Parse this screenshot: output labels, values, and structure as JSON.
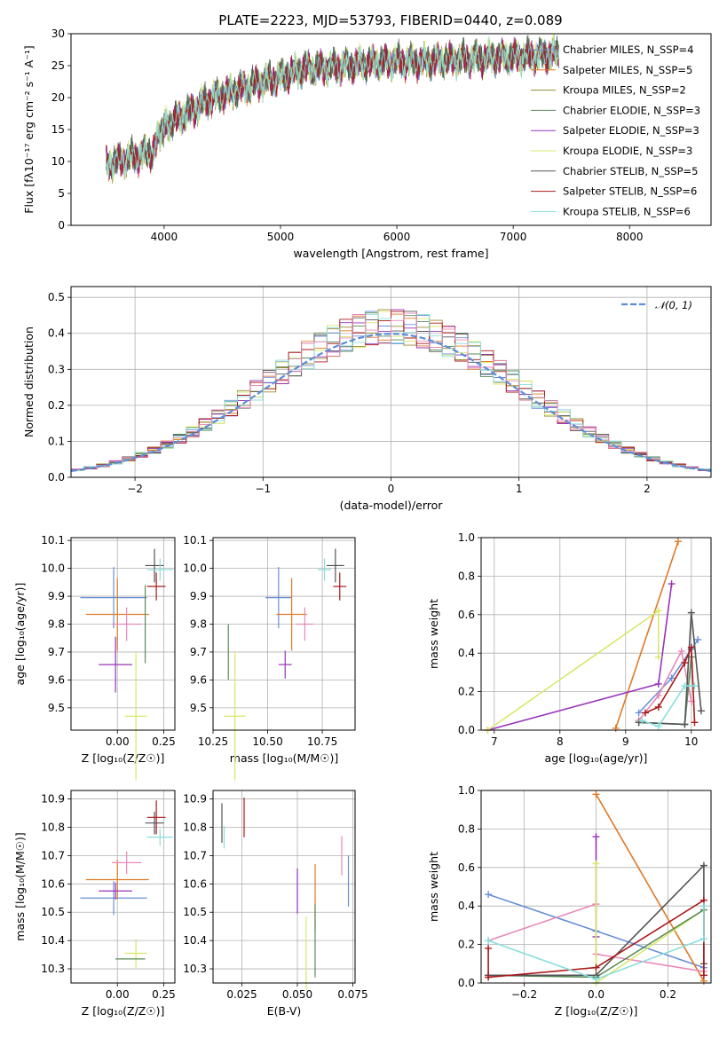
{
  "chart_data": [
    {
      "type": "line",
      "panel": "spectrum",
      "title": "PLATE=2223, MJD=53793, FIBERID=0440, z=0.089",
      "xlabel": "wavelength [Angstrom, rest frame]",
      "ylabel": "Flux [fλ10⁻¹⁷ erg cm⁻² s⁻¹ A⁻¹]",
      "xlim": [
        3200,
        8700
      ],
      "ylim": [
        0,
        30
      ],
      "xticks": [
        "4000",
        "5000",
        "6000",
        "7000",
        "8000"
      ],
      "yticks": [
        "0",
        "5",
        "10",
        "15",
        "20",
        "25",
        "30"
      ],
      "x": [
        3500,
        3700,
        3900,
        4000,
        4200,
        4400,
        4600,
        4800,
        5000,
        5200,
        5400,
        5600,
        5800,
        6000,
        6200,
        6400,
        6600,
        6800,
        7000,
        7200,
        7400
      ],
      "series": [
        {
          "name": "Chabrier MILES, N_SSP=4",
          "color": "#6a8fd8",
          "values": [
            9.5,
            10.5,
            11.5,
            15.5,
            17.5,
            19.8,
            21.0,
            22.2,
            23.2,
            24.5,
            24.6,
            25.0,
            25.4,
            25.6,
            25.5,
            25.8,
            26.0,
            26.2,
            26.3,
            26.5,
            26.8
          ]
        },
        {
          "name": "Salpeter MILES, N_SSP=5",
          "color": "#e07a28",
          "values": [
            9.3,
            10.3,
            11.2,
            15.3,
            17.3,
            19.6,
            20.8,
            22.0,
            23.0,
            24.3,
            24.5,
            24.9,
            25.3,
            25.5,
            25.4,
            25.7,
            25.9,
            26.1,
            26.2,
            26.4,
            26.7
          ]
        },
        {
          "name": "Kroupa MILES, N_SSP=2",
          "color": "#9a8a30",
          "values": [
            9.4,
            10.4,
            11.4,
            15.4,
            17.4,
            19.7,
            20.9,
            22.1,
            23.1,
            24.4,
            24.5,
            25.0,
            25.3,
            25.6,
            25.5,
            25.8,
            26.0,
            26.2,
            26.3,
            26.5,
            26.8
          ]
        },
        {
          "name": "Chabrier ELODIE, N_SSP=3",
          "color": "#5a8a5a",
          "values": [
            9.6,
            10.6,
            11.6,
            15.6,
            17.6,
            19.9,
            21.1,
            22.3,
            23.3,
            24.6,
            24.7,
            25.1,
            25.5,
            25.7,
            25.6,
            25.9,
            26.1,
            26.3,
            26.4,
            26.6,
            26.9
          ]
        },
        {
          "name": "Salpeter ELODIE, N_SSP=3",
          "color": "#9933bb",
          "values": [
            9.5,
            10.5,
            11.5,
            15.5,
            17.5,
            19.8,
            21.0,
            22.2,
            23.2,
            24.5,
            24.6,
            25.0,
            25.4,
            25.6,
            25.5,
            25.8,
            26.0,
            26.2,
            26.3,
            26.5,
            26.8
          ]
        },
        {
          "name": "Kroupa ELODIE, N_SSP=3",
          "color": "#d8e868",
          "values": [
            9.7,
            10.7,
            11.7,
            15.7,
            17.7,
            20.0,
            21.2,
            22.4,
            23.4,
            24.7,
            24.8,
            25.2,
            25.6,
            25.8,
            25.7,
            26.0,
            26.2,
            26.4,
            26.5,
            26.7,
            27.0
          ]
        },
        {
          "name": "Chabrier STELIB, N_SSP=5",
          "color": "#555555",
          "values": [
            9.8,
            10.8,
            11.8,
            15.8,
            17.8,
            20.1,
            21.3,
            22.5,
            23.5,
            24.8,
            24.9,
            25.3,
            25.7,
            25.9,
            25.8,
            26.1,
            26.3,
            26.5,
            26.6,
            26.8,
            27.1
          ]
        },
        {
          "name": "Salpeter STELIB, N_SSP=6",
          "color": "#aa1a1a",
          "values": [
            9.4,
            10.4,
            11.4,
            15.4,
            17.4,
            19.7,
            20.9,
            22.1,
            23.1,
            24.4,
            24.5,
            24.9,
            25.3,
            25.5,
            25.4,
            25.7,
            25.9,
            26.1,
            26.2,
            26.4,
            26.7
          ]
        },
        {
          "name": "Kroupa STELIB, N_SSP=6",
          "color": "#88dddd",
          "values": [
            9.5,
            10.5,
            11.5,
            15.5,
            17.5,
            19.8,
            21.0,
            22.2,
            23.2,
            24.5,
            24.6,
            25.0,
            25.4,
            25.6,
            25.5,
            25.8,
            26.0,
            26.2,
            26.3,
            26.5,
            26.8
          ]
        }
      ],
      "legend": "top-right"
    },
    {
      "type": "line",
      "panel": "residuals",
      "xlabel": "(data-model)/error",
      "ylabel": "Normed distribution",
      "xlim": [
        -2.5,
        2.5
      ],
      "ylim": [
        0,
        0.53
      ],
      "xticks": [
        "−2",
        "−1",
        "0",
        "1",
        "2"
      ],
      "yticks": [
        "0.0",
        "0.1",
        "0.2",
        "0.3",
        "0.4",
        "0.5"
      ],
      "grid": true,
      "reference": {
        "name": "𝒩(0, 1)",
        "color": "#5b8fd8"
      },
      "bin_width": 0.1,
      "bin_start": -2.5,
      "series_colors": [
        "#6a8fd8",
        "#e07a28",
        "#9a8a30",
        "#5a8a5a",
        "#9933bb",
        "#d8e868",
        "#555555",
        "#aa1a1a",
        "#88dddd",
        "#e888b8"
      ],
      "legend": "top-right"
    },
    {
      "type": "scatter",
      "panel": "age-Z",
      "xlabel": "Z [log₁₀(Z/Z☉)]",
      "ylabel": "age  [log₁₀(age/yr)]",
      "xlim": [
        -0.25,
        0.31
      ],
      "ylim": [
        9.42,
        10.11
      ],
      "xticks": [
        "0.00",
        "0.25"
      ],
      "yticks": [
        "9.5",
        "9.6",
        "9.7",
        "9.8",
        "9.9",
        "10.0",
        "10.1"
      ],
      "points": [
        {
          "color": "#6a8fd8",
          "x": -0.02,
          "y": 9.895,
          "xerr": 0.18,
          "yerr": 0.11
        },
        {
          "color": "#e07a28",
          "x": 0.0,
          "y": 9.835,
          "xerr": 0.17,
          "yerr": 0.13
        },
        {
          "color": "#9933bb",
          "x": -0.01,
          "y": 9.655,
          "xerr": 0.09,
          "yerr": 0.1
        },
        {
          "color": "#e888b8",
          "x": 0.05,
          "y": 9.8,
          "xerr": 0.08,
          "yerr": 0.06
        },
        {
          "color": "#d8e868",
          "x": 0.1,
          "y": 9.47,
          "xerr": 0.06,
          "yerr": 0.23
        },
        {
          "color": "#5a8a5a",
          "x": 0.15,
          "y": 9.8,
          "xerr": 0.0,
          "yerr": 0.14
        },
        {
          "color": "#555555",
          "x": 0.2,
          "y": 10.01,
          "xerr": 0.05,
          "yerr": 0.06
        },
        {
          "color": "#88dddd",
          "x": 0.23,
          "y": 9.995,
          "xerr": 0.07,
          "yerr": 0.04
        },
        {
          "color": "#aa1a1a",
          "x": 0.21,
          "y": 9.935,
          "xerr": 0.05,
          "yerr": 0.05
        }
      ]
    },
    {
      "type": "scatter",
      "panel": "age-mass",
      "xlabel": "mass [log₁₀(M/M☉)]",
      "xlim": [
        10.25,
        10.9
      ],
      "ylim": [
        9.42,
        10.11
      ],
      "xticks": [
        "10.25",
        "10.50",
        "10.75"
      ],
      "yticks": [
        "9.5",
        "9.6",
        "9.7",
        "9.8",
        "9.9",
        "10.0",
        "10.1"
      ],
      "points": [
        {
          "color": "#6a8fd8",
          "x": 10.55,
          "y": 9.895,
          "xerr": 0.06,
          "yerr": 0.11
        },
        {
          "color": "#e07a28",
          "x": 10.61,
          "y": 9.835,
          "xerr": 0.07,
          "yerr": 0.13
        },
        {
          "color": "#9933bb",
          "x": 10.58,
          "y": 9.655,
          "xerr": 0.03,
          "yerr": 0.05
        },
        {
          "color": "#e888b8",
          "x": 10.67,
          "y": 9.8,
          "xerr": 0.04,
          "yerr": 0.06
        },
        {
          "color": "#d8e868",
          "x": 10.35,
          "y": 9.47,
          "xerr": 0.05,
          "yerr": 0.23
        },
        {
          "color": "#5a8a5a",
          "x": 10.32,
          "y": 9.7,
          "xerr": 0.0,
          "yerr": 0.1
        },
        {
          "color": "#555555",
          "x": 10.81,
          "y": 10.01,
          "xerr": 0.04,
          "yerr": 0.06
        },
        {
          "color": "#88dddd",
          "x": 10.76,
          "y": 9.995,
          "xerr": 0.03,
          "yerr": 0.04
        },
        {
          "color": "#aa1a1a",
          "x": 10.83,
          "y": 9.935,
          "xerr": 0.03,
          "yerr": 0.05
        }
      ]
    },
    {
      "type": "line",
      "panel": "weight-age",
      "xlabel": "age  [log₁₀(age/yr)]",
      "ylabel": "mass weight",
      "xlim": [
        6.8,
        10.3
      ],
      "ylim": [
        0,
        1.0
      ],
      "xticks": [
        "7",
        "8",
        "9",
        "10"
      ],
      "yticks": [
        "0.0",
        "0.2",
        "0.4",
        "0.6",
        "0.8",
        "1.0"
      ],
      "grid": true,
      "series": [
        {
          "color": "#6a8fd8",
          "x": [
            9.2,
            9.7,
            10.0,
            10.1
          ],
          "values": [
            0.09,
            0.27,
            0.42,
            0.47
          ]
        },
        {
          "color": "#e07a28",
          "x": [
            8.85,
            9.8
          ],
          "values": [
            0.01,
            0.98
          ]
        },
        {
          "color": "#9933bb",
          "x": [
            6.9,
            9.5,
            9.7
          ],
          "values": [
            0.0,
            0.24,
            0.76
          ]
        },
        {
          "color": "#e888b8",
          "x": [
            9.2,
            9.5,
            9.85,
            10.0
          ],
          "values": [
            0.05,
            0.18,
            0.41,
            0.15
          ]
        },
        {
          "color": "#d8e868",
          "x": [
            6.9,
            9.5,
            9.5
          ],
          "values": [
            0.0,
            0.62,
            0.38
          ]
        },
        {
          "color": "#5a8a5a",
          "x": [
            9.2,
            9.9,
            10.0
          ],
          "values": [
            0.04,
            0.03,
            0.38
          ]
        },
        {
          "color": "#555555",
          "x": [
            9.2,
            9.9,
            10.0,
            10.15
          ],
          "values": [
            0.04,
            0.03,
            0.61,
            0.1
          ]
        },
        {
          "color": "#aa1a1a",
          "x": [
            9.3,
            9.5,
            9.9,
            10.0,
            10.05
          ],
          "values": [
            0.09,
            0.12,
            0.35,
            0.43,
            0.04
          ]
        },
        {
          "color": "#88dddd",
          "x": [
            9.25,
            9.5,
            9.9,
            10.05
          ],
          "values": [
            0.05,
            0.02,
            0.23,
            0.23
          ]
        }
      ]
    },
    {
      "type": "scatter",
      "panel": "mass-Z",
      "xlabel": "Z [log₁₀(Z/Z☉)]",
      "ylabel": "mass [log₁₀(M/M☉)]",
      "xlim": [
        -0.25,
        0.31
      ],
      "ylim": [
        10.25,
        10.93
      ],
      "xticks": [
        "0.00",
        "0.25"
      ],
      "yticks": [
        "10.3",
        "10.4",
        "10.5",
        "10.6",
        "10.7",
        "10.8",
        "10.9"
      ],
      "points": [
        {
          "color": "#6a8fd8",
          "x": -0.02,
          "y": 10.55,
          "xerr": 0.18,
          "yerr": 0.06
        },
        {
          "color": "#e07a28",
          "x": 0.0,
          "y": 10.615,
          "xerr": 0.17,
          "yerr": 0.07
        },
        {
          "color": "#9933bb",
          "x": -0.01,
          "y": 10.575,
          "xerr": 0.09,
          "yerr": 0.03
        },
        {
          "color": "#e888b8",
          "x": 0.05,
          "y": 10.675,
          "xerr": 0.08,
          "yerr": 0.04
        },
        {
          "color": "#d8e868",
          "x": 0.1,
          "y": 10.355,
          "xerr": 0.06,
          "yerr": 0.05
        },
        {
          "color": "#5a8a5a",
          "x": 0.07,
          "y": 10.335,
          "xerr": 0.08,
          "yerr": 0.0
        },
        {
          "color": "#555555",
          "x": 0.2,
          "y": 10.815,
          "xerr": 0.05,
          "yerr": 0.04
        },
        {
          "color": "#88dddd",
          "x": 0.23,
          "y": 10.765,
          "xerr": 0.07,
          "yerr": 0.03
        },
        {
          "color": "#aa1a1a",
          "x": 0.21,
          "y": 10.835,
          "xerr": 0.05,
          "yerr": 0.06
        }
      ]
    },
    {
      "type": "scatter",
      "panel": "mass-EBV",
      "xlabel": "E(B-V)",
      "xlim": [
        0.012,
        0.076
      ],
      "ylim": [
        10.25,
        10.93
      ],
      "xticks": [
        "0.025",
        "0.050",
        "0.075"
      ],
      "yticks": [
        "10.3",
        "10.4",
        "10.5",
        "10.6",
        "10.7",
        "10.8",
        "10.9"
      ],
      "points": [
        {
          "color": "#555555",
          "x": 0.016,
          "y": 10.815,
          "xerr": 0,
          "yerr": 0.07
        },
        {
          "color": "#88dddd",
          "x": 0.017,
          "y": 10.765,
          "xerr": 0,
          "yerr": 0.04
        },
        {
          "color": "#aa1a1a",
          "x": 0.026,
          "y": 10.835,
          "xerr": 0,
          "yerr": 0.07
        },
        {
          "color": "#9933bb",
          "x": 0.05,
          "y": 10.575,
          "xerr": 0,
          "yerr": 0.08
        },
        {
          "color": "#d8e868",
          "x": 0.054,
          "y": 10.355,
          "xerr": 0,
          "yerr": 0.13
        },
        {
          "color": "#e07a28",
          "x": 0.058,
          "y": 10.55,
          "xerr": 0,
          "yerr": 0.12
        },
        {
          "color": "#5a8a5a",
          "x": 0.058,
          "y": 10.4,
          "xerr": 0,
          "yerr": 0.13
        },
        {
          "color": "#e888b8",
          "x": 0.07,
          "y": 10.7,
          "xerr": 0,
          "yerr": 0.07
        },
        {
          "color": "#6a8fd8",
          "x": 0.073,
          "y": 10.61,
          "xerr": 0,
          "yerr": 0.09
        }
      ]
    },
    {
      "type": "line",
      "panel": "weight-Z",
      "xlabel": "Z [log₁₀(Z/Z☉)]",
      "ylabel": "mass weight",
      "xlim": [
        -0.32,
        0.32
      ],
      "ylim": [
        0,
        1.0
      ],
      "xticks": [
        "−0.2",
        "0.0",
        "0.2"
      ],
      "yticks": [
        "0.0",
        "0.2",
        "0.4",
        "0.6",
        "0.8",
        "1.0"
      ],
      "grid": true,
      "series": [
        {
          "color": "#6a8fd8",
          "x": [
            -0.3,
            0.0,
            0.3
          ],
          "values": [
            0.46,
            0.27,
            0.08
          ]
        },
        {
          "color": "#e07a28",
          "x": [
            0.0,
            0.3
          ],
          "values": [
            0.98,
            0.01
          ]
        },
        {
          "color": "#9933bb",
          "x": [
            0.0,
            0.0
          ],
          "values": [
            0.76,
            0.24
          ]
        },
        {
          "color": "#e888b8",
          "x": [
            -0.3,
            0.0,
            0.0,
            0.3
          ],
          "values": [
            0.22,
            0.41,
            0.15,
            0.06
          ]
        },
        {
          "color": "#d8e868",
          "x": [
            0.0,
            0.0,
            0.3
          ],
          "values": [
            0.62,
            0.0,
            0.38
          ]
        },
        {
          "color": "#5a8a5a",
          "x": [
            -0.3,
            0.0,
            0.3
          ],
          "values": [
            0.04,
            0.03,
            0.38
          ]
        },
        {
          "color": "#555555",
          "x": [
            -0.3,
            0.0,
            0.3,
            0.3
          ],
          "values": [
            0.04,
            0.04,
            0.61,
            0.1
          ]
        },
        {
          "color": "#aa1a1a",
          "x": [
            -0.3,
            -0.3,
            0.0,
            0.3,
            0.3
          ],
          "values": [
            0.18,
            0.03,
            0.08,
            0.43,
            0.04
          ]
        },
        {
          "color": "#88dddd",
          "x": [
            -0.3,
            0.0,
            0.3,
            0.3
          ],
          "values": [
            0.22,
            0.02,
            0.23,
            0.4
          ]
        }
      ]
    }
  ]
}
